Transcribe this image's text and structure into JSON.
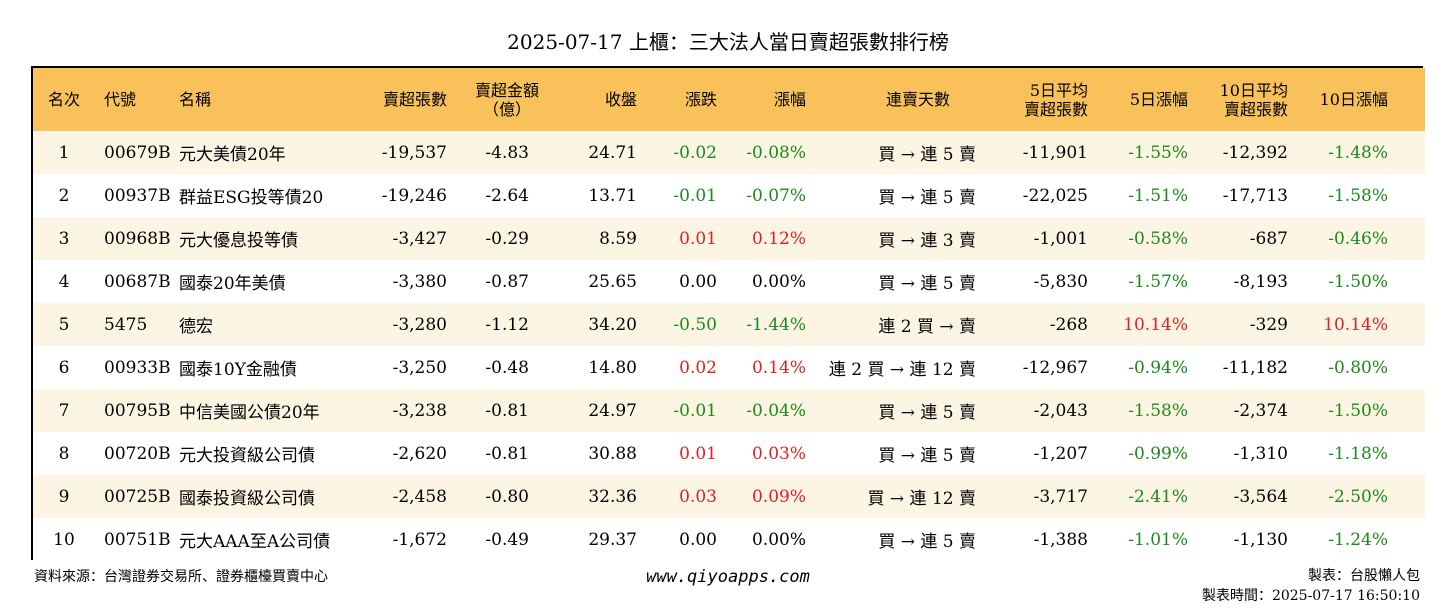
{
  "title": "2025-07-17 上櫃：三大法人當日賣超張數排行榜",
  "headers": {
    "rank": "名次",
    "code": "代號",
    "name": "名稱",
    "sell_shares": "賣超張數",
    "sell_amount_l1": "賣超金額",
    "sell_amount_l2": "（億）",
    "close": "收盤",
    "change": "漲跌",
    "change_pct": "漲幅",
    "streak": "連賣天數",
    "avg5_l1": "5日平均",
    "avg5_l2": "賣超張數",
    "pct5": "5日漲幅",
    "avg10_l1": "10日平均",
    "avg10_l2": "賣超張數",
    "pct10": "10日漲幅"
  },
  "rows": [
    {
      "rank": "1",
      "code": "00679B",
      "name": "元大美債20年",
      "sell": "-19,537",
      "amount": "-4.83",
      "close": "24.71",
      "chg": "-0.02",
      "chg_pct": "-0.08%",
      "streak": "買 → 連 5 賣",
      "avg5": "-11,901",
      "pct5": "-1.55%",
      "avg10": "-12,392",
      "pct10": "-1.48%"
    },
    {
      "rank": "2",
      "code": "00937B",
      "name": "群益ESG投等債20",
      "sell": "-19,246",
      "amount": "-2.64",
      "close": "13.71",
      "chg": "-0.01",
      "chg_pct": "-0.07%",
      "streak": "買 → 連 5 賣",
      "avg5": "-22,025",
      "pct5": "-1.51%",
      "avg10": "-17,713",
      "pct10": "-1.58%"
    },
    {
      "rank": "3",
      "code": "00968B",
      "name": "元大優息投等債",
      "sell": "-3,427",
      "amount": "-0.29",
      "close": "8.59",
      "chg": "0.01",
      "chg_pct": "0.12%",
      "streak": "買 → 連 3 賣",
      "avg5": "-1,001",
      "pct5": "-0.58%",
      "avg10": "-687",
      "pct10": "-0.46%"
    },
    {
      "rank": "4",
      "code": "00687B",
      "name": "國泰20年美債",
      "sell": "-3,380",
      "amount": "-0.87",
      "close": "25.65",
      "chg": "0.00",
      "chg_pct": "0.00%",
      "streak": "買 → 連 5 賣",
      "avg5": "-5,830",
      "pct5": "-1.57%",
      "avg10": "-8,193",
      "pct10": "-1.50%"
    },
    {
      "rank": "5",
      "code": "5475",
      "name": "德宏",
      "sell": "-3,280",
      "amount": "-1.12",
      "close": "34.20",
      "chg": "-0.50",
      "chg_pct": "-1.44%",
      "streak": "連 2 買 → 賣",
      "avg5": "-268",
      "pct5": "10.14%",
      "avg10": "-329",
      "pct10": "10.14%"
    },
    {
      "rank": "6",
      "code": "00933B",
      "name": "國泰10Y金融債",
      "sell": "-3,250",
      "amount": "-0.48",
      "close": "14.80",
      "chg": "0.02",
      "chg_pct": "0.14%",
      "streak": "連 2 買 → 連 12 賣",
      "avg5": "-12,967",
      "pct5": "-0.94%",
      "avg10": "-11,182",
      "pct10": "-0.80%"
    },
    {
      "rank": "7",
      "code": "00795B",
      "name": "中信美國公債20年",
      "sell": "-3,238",
      "amount": "-0.81",
      "close": "24.97",
      "chg": "-0.01",
      "chg_pct": "-0.04%",
      "streak": "買 → 連 5 賣",
      "avg5": "-2,043",
      "pct5": "-1.58%",
      "avg10": "-2,374",
      "pct10": "-1.50%"
    },
    {
      "rank": "8",
      "code": "00720B",
      "name": "元大投資級公司債",
      "sell": "-2,620",
      "amount": "-0.81",
      "close": "30.88",
      "chg": "0.01",
      "chg_pct": "0.03%",
      "streak": "買 → 連 5 賣",
      "avg5": "-1,207",
      "pct5": "-0.99%",
      "avg10": "-1,310",
      "pct10": "-1.18%"
    },
    {
      "rank": "9",
      "code": "00725B",
      "name": "國泰投資級公司債",
      "sell": "-2,458",
      "amount": "-0.80",
      "close": "32.36",
      "chg": "0.03",
      "chg_pct": "0.09%",
      "streak": "買 → 連 12 賣",
      "avg5": "-3,717",
      "pct5": "-2.41%",
      "avg10": "-3,564",
      "pct10": "-2.50%"
    },
    {
      "rank": "10",
      "code": "00751B",
      "name": "元大AAA至A公司債",
      "sell": "-1,672",
      "amount": "-0.49",
      "close": "29.37",
      "chg": "0.00",
      "chg_pct": "0.00%",
      "streak": "買 → 連 5 賣",
      "avg5": "-1,388",
      "pct5": "-1.01%",
      "avg10": "-1,130",
      "pct10": "-1.24%"
    }
  ],
  "footer": {
    "source": "資料來源：台灣證券交易所、證券櫃檯買賣中心",
    "url": "www.qiyoapps.com",
    "maker": "製表：台股懶人包",
    "made_time": "製表時間：2025-07-17 16:50:10"
  },
  "colors": {
    "header_bg": "#f9c15a",
    "stripe_bg": "#fdf5e4",
    "positive": "#e02020",
    "negative": "#1a8a1a"
  }
}
